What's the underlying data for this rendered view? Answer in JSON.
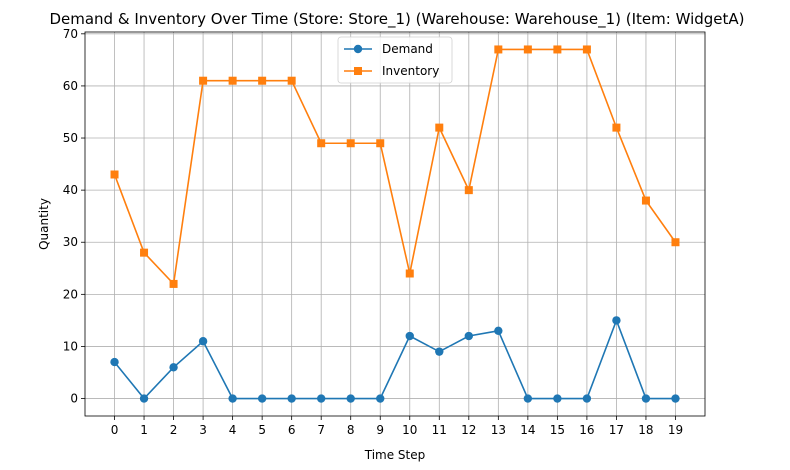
{
  "chart_data": {
    "type": "line",
    "title": "Demand & Inventory Over Time (Store: Store_1) (Warehouse: Warehouse_1) (Item: WidgetA)",
    "xlabel": "Time Step",
    "ylabel": "Quantity",
    "x": [
      0,
      1,
      2,
      3,
      4,
      5,
      6,
      7,
      8,
      9,
      10,
      11,
      12,
      13,
      14,
      15,
      16,
      17,
      18,
      19
    ],
    "xlim": [
      -1,
      20
    ],
    "ylim": [
      -3.35,
      70.35
    ],
    "xticks": [
      0,
      1,
      2,
      3,
      4,
      5,
      6,
      7,
      8,
      9,
      10,
      11,
      12,
      13,
      14,
      15,
      16,
      17,
      18,
      19
    ],
    "yticks": [
      0,
      10,
      20,
      30,
      40,
      50,
      60,
      70
    ],
    "grid": true,
    "legend_position": "upper-center",
    "series": [
      {
        "name": "Demand",
        "color": "#1f77b4",
        "marker": "circle",
        "values": [
          7,
          0,
          6,
          11,
          0,
          0,
          0,
          0,
          0,
          0,
          12,
          9,
          12,
          13,
          0,
          0,
          0,
          15,
          0,
          0
        ]
      },
      {
        "name": "Inventory",
        "color": "#ff7f0e",
        "marker": "square",
        "values": [
          43,
          28,
          22,
          61,
          61,
          61,
          61,
          49,
          49,
          49,
          24,
          52,
          40,
          67,
          67,
          67,
          67,
          52,
          38,
          30
        ]
      }
    ]
  }
}
